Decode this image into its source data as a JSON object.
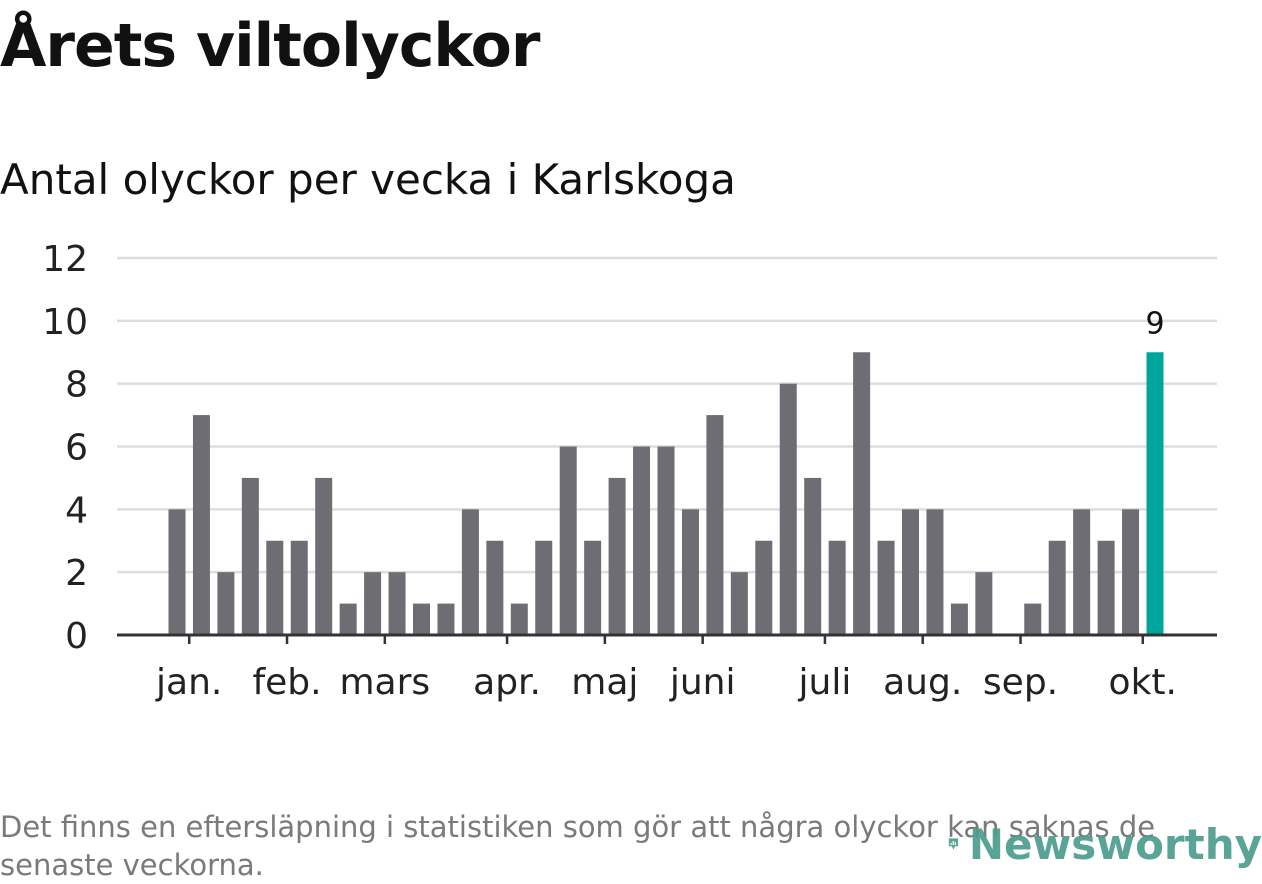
{
  "title": "Årets viltolyckor",
  "subtitle": "Antal olyckor per vecka i Karlskoga",
  "footnote": "Det finns en eftersläpning i statistiken som gör att några olyckor kan saknas de senaste veckorna.",
  "brand": {
    "name": "Newsworthy",
    "icon": "newsworthy-logo-icon"
  },
  "colors": {
    "bar": "#6e6d73",
    "highlight": "#00a59b",
    "grid": "#dddddd",
    "axis": "#333333"
  },
  "chart_data": {
    "type": "bar",
    "title": "Årets viltolyckor",
    "subtitle": "Antal olyckor per vecka i Karlskoga",
    "xlabel": "",
    "ylabel": "",
    "ylim": [
      0,
      12
    ],
    "yticks": [
      0,
      2,
      4,
      6,
      8,
      10,
      12
    ],
    "grid": true,
    "x": [
      1,
      2,
      3,
      4,
      5,
      6,
      7,
      8,
      9,
      10,
      11,
      12,
      13,
      14,
      15,
      16,
      17,
      18,
      19,
      20,
      21,
      22,
      23,
      24,
      25,
      26,
      27,
      28,
      29,
      30,
      31,
      32,
      33,
      34,
      35,
      36,
      37,
      38,
      39,
      40,
      41
    ],
    "values": [
      4,
      7,
      2,
      5,
      3,
      3,
      5,
      1,
      2,
      2,
      1,
      1,
      4,
      3,
      1,
      3,
      6,
      3,
      5,
      6,
      6,
      4,
      7,
      2,
      3,
      8,
      5,
      3,
      9,
      3,
      4,
      4,
      1,
      2,
      0,
      1,
      3,
      4,
      3,
      4,
      9
    ],
    "highlight_index": 40,
    "highlight_label": "9",
    "month_ticks": [
      {
        "label": "jan.",
        "x": 1.5
      },
      {
        "label": "feb.",
        "x": 5.5
      },
      {
        "label": "mars",
        "x": 9.5
      },
      {
        "label": "apr.",
        "x": 14.5
      },
      {
        "label": "maj",
        "x": 18.5
      },
      {
        "label": "juni",
        "x": 22.5
      },
      {
        "label": "juli",
        "x": 27.5
      },
      {
        "label": "aug.",
        "x": 31.5
      },
      {
        "label": "sep.",
        "x": 35.5
      },
      {
        "label": "okt.",
        "x": 40.5
      }
    ]
  }
}
